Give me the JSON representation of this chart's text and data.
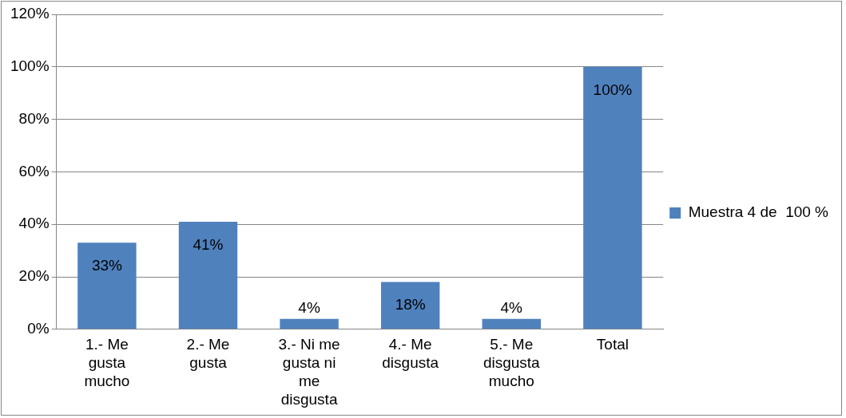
{
  "chart_data": {
    "type": "bar",
    "categories": [
      "1.- Me gusta mucho",
      "2.- Me gusta",
      "3.- Ni me gusta ni me disgusta",
      "4.- Me disgusta",
      "5.- Me disgusta mucho",
      "Total"
    ],
    "series": [
      {
        "name": "Muestra 4 de  100 %",
        "color": "#4f81bd",
        "values": [
          33,
          41,
          4,
          18,
          4,
          100
        ],
        "value_labels": [
          "33%",
          "41%",
          "4%",
          "18%",
          "4%",
          "100%"
        ]
      }
    ],
    "ylim": [
      0,
      120
    ],
    "yticks": [
      {
        "value": 0,
        "label": "0%"
      },
      {
        "value": 20,
        "label": "20%"
      },
      {
        "value": 40,
        "label": "40%"
      },
      {
        "value": 60,
        "label": "60%"
      },
      {
        "value": 80,
        "label": "80%"
      },
      {
        "value": 100,
        "label": "100%"
      },
      {
        "value": 120,
        "label": "120%"
      }
    ],
    "grid": "y",
    "legend": "right"
  }
}
